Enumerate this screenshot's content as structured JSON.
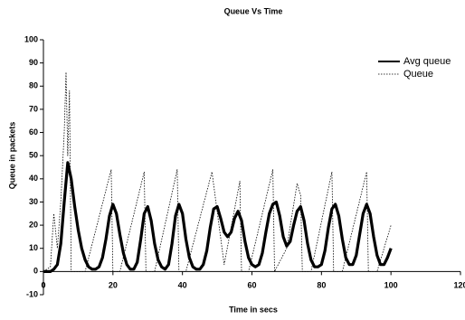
{
  "chart_data": {
    "type": "line",
    "title": "Queue Vs Time",
    "x_label": "Time in secs",
    "y_label": "Queue in packets",
    "xlim": [
      0,
      120
    ],
    "xticks": [
      0,
      20,
      40,
      60,
      80,
      100,
      120
    ],
    "ylim": [
      -10,
      100
    ],
    "yticks": [
      -10,
      0,
      10,
      20,
      30,
      40,
      50,
      60,
      70,
      80,
      90,
      100
    ],
    "grid": false,
    "legend": "top-right",
    "series": [
      {
        "name": "Avg queue",
        "color": "#000000",
        "style": "solid",
        "x": [
          0,
          1,
          2,
          3,
          4,
          5,
          6,
          7,
          8,
          9,
          10,
          11,
          12,
          13,
          14,
          15,
          16,
          17,
          18,
          19,
          20,
          21,
          22,
          23,
          24,
          25,
          26,
          27,
          28,
          29,
          30,
          31,
          32,
          33,
          34,
          35,
          36,
          37,
          38,
          39,
          40,
          41,
          42,
          43,
          44,
          45,
          46,
          47,
          48,
          49,
          50,
          51,
          52,
          53,
          54,
          55,
          56,
          57,
          58,
          59,
          60,
          61,
          62,
          63,
          64,
          65,
          66,
          67,
          68,
          69,
          70,
          71,
          72,
          73,
          74,
          75,
          76,
          77,
          78,
          79,
          80,
          81,
          82,
          83,
          84,
          85,
          86,
          87,
          88,
          89,
          90,
          91,
          92,
          93,
          94,
          95,
          96,
          97,
          98,
          99,
          100
        ],
        "values": [
          0,
          0,
          0,
          1,
          3,
          12,
          30,
          47,
          40,
          28,
          18,
          10,
          5,
          2,
          1,
          1,
          2,
          6,
          14,
          24,
          29,
          25,
          16,
          8,
          3,
          1,
          1,
          4,
          14,
          25,
          28,
          22,
          12,
          5,
          2,
          1,
          3,
          12,
          24,
          29,
          25,
          14,
          6,
          2,
          1,
          1,
          3,
          9,
          19,
          27,
          28,
          23,
          17,
          15,
          17,
          23,
          26,
          22,
          13,
          6,
          3,
          2,
          3,
          8,
          17,
          25,
          29,
          30,
          24,
          15,
          11,
          13,
          20,
          26,
          28,
          22,
          12,
          5,
          2,
          2,
          3,
          9,
          19,
          27,
          29,
          24,
          14,
          6,
          3,
          3,
          7,
          16,
          25,
          29,
          25,
          15,
          7,
          3,
          3,
          6,
          10
        ]
      },
      {
        "name": "Queue",
        "color": "#000000",
        "style": "dotted",
        "x": [
          0,
          2,
          3,
          4,
          5,
          6,
          6.5,
          7,
          7.5,
          8,
          12,
          19.5,
          20,
          22,
          29,
          29.5,
          32,
          38.5,
          39,
          41,
          48.5,
          52,
          56.5,
          57,
          59,
          66,
          66.5,
          70,
          73,
          74,
          74.5,
          77,
          83,
          83.5,
          86,
          93,
          93.5,
          96,
          100
        ],
        "values": [
          0,
          2,
          25,
          10,
          30,
          60,
          86,
          50,
          78,
          0,
          0,
          44,
          0,
          0,
          43,
          0,
          0,
          44,
          0,
          0,
          43,
          3,
          39,
          0,
          0,
          44,
          0,
          10,
          38,
          33,
          0,
          0,
          43,
          0,
          0,
          43,
          0,
          0,
          20
        ]
      }
    ]
  }
}
